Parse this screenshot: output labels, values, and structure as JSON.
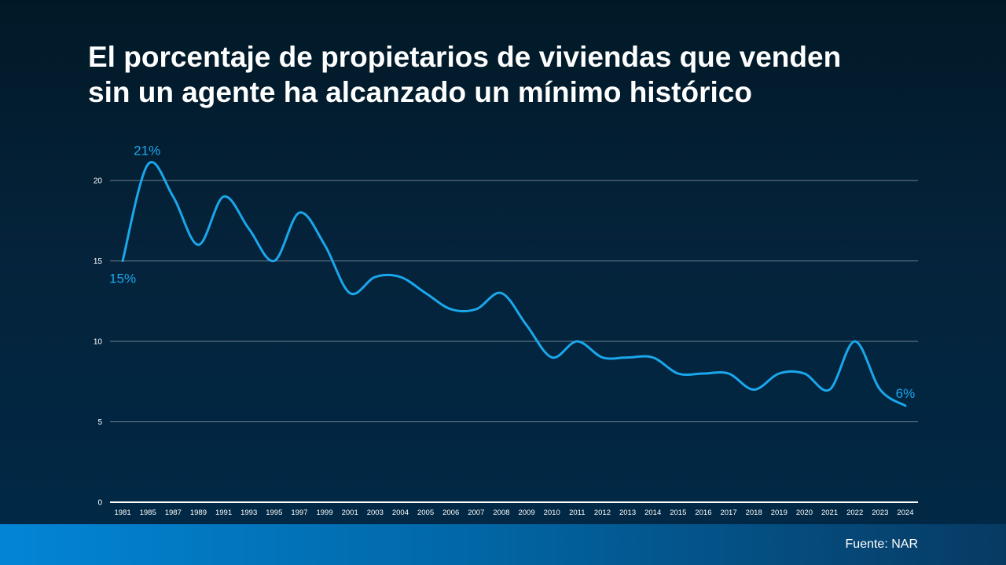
{
  "slide": {
    "title_line1": "El porcentaje de propietarios de viviendas que venden",
    "title_line2": "sin un agente ha alcanzado un mínimo histórico",
    "source": "Fuente: NAR"
  },
  "colors": {
    "line": "#1aa7ec",
    "label": "#1aa7ec",
    "grid": "#6f7f8c",
    "axis": "#ffffff",
    "tick_text": "#ffffff"
  },
  "chart_data": {
    "type": "line",
    "title": "",
    "xlabel": "",
    "ylabel": "",
    "ylim": [
      0,
      20
    ],
    "y_ticks": [
      0,
      5,
      10,
      15,
      20
    ],
    "grid": true,
    "categories": [
      "1981",
      "1985",
      "1987",
      "1989",
      "1991",
      "1993",
      "1995",
      "1997",
      "1999",
      "2001",
      "2003",
      "2004",
      "2005",
      "2006",
      "2007",
      "2008",
      "2009",
      "2010",
      "2011",
      "2012",
      "2013",
      "2014",
      "2015",
      "2016",
      "2017",
      "2018",
      "2019",
      "2020",
      "2021",
      "2022",
      "2023",
      "2024"
    ],
    "series": [
      {
        "values": [
          15,
          21,
          19,
          16,
          19,
          17,
          15,
          18,
          16,
          13,
          14,
          14,
          13,
          12,
          12,
          13,
          11,
          9,
          10,
          9,
          9,
          9,
          8,
          8,
          8,
          7,
          8,
          8,
          7,
          10,
          7,
          6
        ]
      }
    ],
    "annotations": [
      {
        "index": 0,
        "text": "15%",
        "position": "below"
      },
      {
        "index": 1,
        "text": "21%",
        "position": "above"
      },
      {
        "index": 31,
        "text": "6%",
        "position": "above"
      }
    ]
  }
}
